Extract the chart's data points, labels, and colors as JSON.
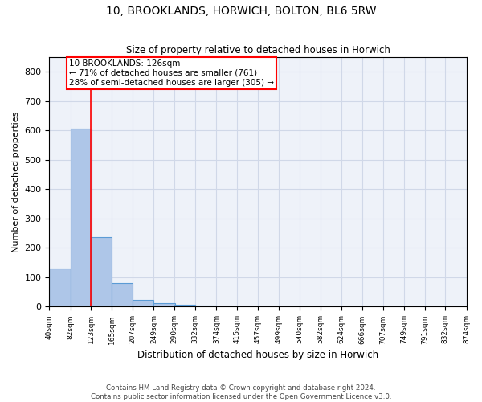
{
  "title": "10, BROOKLANDS, HORWICH, BOLTON, BL6 5RW",
  "subtitle": "Size of property relative to detached houses in Horwich",
  "xlabel": "Distribution of detached houses by size in Horwich",
  "ylabel": "Number of detached properties",
  "bar_color": "#aec6e8",
  "bar_edge_color": "#5b9bd5",
  "background_color": "#eef2f9",
  "grid_color": "#d0d8e8",
  "bin_edges": [
    40,
    82,
    123,
    165,
    207,
    249,
    290,
    332,
    374,
    415,
    457,
    499,
    540,
    582,
    624,
    666,
    707,
    749,
    791,
    832,
    874
  ],
  "bar_heights": [
    130,
    605,
    237,
    80,
    22,
    12,
    8,
    3,
    2,
    1,
    1,
    0,
    0,
    1,
    0,
    0,
    0,
    0,
    0,
    0
  ],
  "red_line_x": 123,
  "annotation_text": "10 BROOKLANDS: 126sqm\n← 71% of detached houses are smaller (761)\n28% of semi-detached houses are larger (305) →",
  "annotation_box_color": "white",
  "annotation_box_edge_color": "red",
  "red_line_color": "red",
  "ylim": [
    0,
    850
  ],
  "xlim": [
    40,
    874
  ],
  "tick_labels": [
    "40sqm",
    "82sqm",
    "123sqm",
    "165sqm",
    "207sqm",
    "249sqm",
    "290sqm",
    "332sqm",
    "374sqm",
    "415sqm",
    "457sqm",
    "499sqm",
    "540sqm",
    "582sqm",
    "624sqm",
    "666sqm",
    "707sqm",
    "749sqm",
    "791sqm",
    "832sqm",
    "874sqm"
  ],
  "footer_line1": "Contains HM Land Registry data © Crown copyright and database right 2024.",
  "footer_line2": "Contains public sector information licensed under the Open Government Licence v3.0."
}
